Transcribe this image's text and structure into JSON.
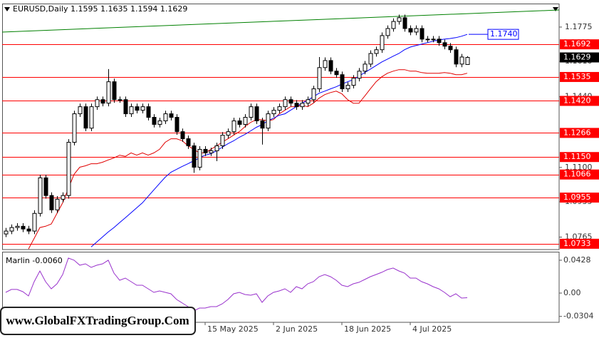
{
  "chart_data": {
    "type": "candlestick",
    "title": "EURUSD,Daily  1.1595 1.1635 1.1594 1.1629",
    "categories": [
      null,
      null,
      null,
      null,
      null,
      null,
      null,
      null,
      null,
      null,
      null,
      null,
      null,
      null,
      null,
      null,
      null,
      null,
      null,
      null,
      null,
      null,
      null,
      null,
      null,
      null,
      null,
      null,
      null,
      null,
      null,
      null,
      null,
      null,
      null,
      "15 May 2025",
      null,
      null,
      null,
      null,
      null,
      null,
      null,
      null,
      null,
      null,
      null,
      "2 Jun 2025",
      null,
      null,
      null,
      null,
      null,
      null,
      null,
      null,
      null,
      null,
      null,
      "18 Jun 2025",
      null,
      null,
      null,
      null,
      null,
      null,
      null,
      null,
      null,
      null,
      null,
      "4 Jul 2025",
      null,
      null,
      null,
      null,
      null,
      null,
      null,
      null,
      null,
      null
    ],
    "open": [
      1.078,
      1.0794,
      1.0811,
      1.0817,
      1.0804,
      1.0794,
      1.0879,
      1.105,
      1.0965,
      1.0896,
      1.0947,
      1.0965,
      1.1221,
      1.1358,
      1.1392,
      1.1289,
      1.1392,
      1.1426,
      1.1409,
      1.1512,
      1.1426,
      1.1426,
      1.1358,
      1.1392,
      1.1375,
      1.1392,
      1.1341,
      1.1307,
      1.1324,
      1.1358,
      1.1341,
      1.1272,
      1.1238,
      1.1204,
      1.1101,
      1.1187,
      1.117,
      1.118,
      1.1204,
      1.1255,
      1.1272,
      1.1324,
      1.1307,
      1.1341,
      1.1392,
      1.1324,
      1.1289,
      1.1358,
      1.1375,
      1.1392,
      1.1426,
      1.1409,
      1.1392,
      1.1409,
      1.1426,
      1.1478,
      1.158,
      1.1614,
      1.1563,
      1.1546,
      1.1478,
      1.1495,
      1.1529,
      1.1563,
      1.1597,
      1.1648,
      1.1666,
      1.1734,
      1.1768,
      1.1802,
      1.182,
      1.1768,
      1.1751,
      1.1768,
      1.1717,
      1.1717,
      1.1717,
      1.17,
      1.1683,
      1.1666,
      1.1597,
      1.1595
    ],
    "high": [
      1.0809,
      1.0826,
      1.0832,
      1.0832,
      1.0819,
      1.0894,
      1.1065,
      1.1065,
      1.098,
      1.0962,
      1.098,
      1.1236,
      1.1373,
      1.1407,
      1.1407,
      1.1407,
      1.1441,
      1.1441,
      1.1573,
      1.1527,
      1.1441,
      1.1441,
      1.1407,
      1.1407,
      1.1407,
      1.1407,
      1.1356,
      1.1339,
      1.1373,
      1.1373,
      1.1356,
      1.1287,
      1.1253,
      1.1219,
      1.1202,
      1.1202,
      1.1195,
      1.1219,
      1.127,
      1.1287,
      1.1339,
      1.1339,
      1.1356,
      1.1407,
      1.1407,
      1.1339,
      1.1373,
      1.139,
      1.1407,
      1.1441,
      1.1441,
      1.1424,
      1.1424,
      1.1441,
      1.1493,
      1.1631,
      1.1629,
      1.1629,
      1.1578,
      1.1561,
      1.151,
      1.1544,
      1.1578,
      1.1612,
      1.1663,
      1.1681,
      1.1749,
      1.1783,
      1.1817,
      1.1835,
      1.1835,
      1.1783,
      1.1783,
      1.1783,
      1.1732,
      1.1732,
      1.1732,
      1.1715,
      1.1698,
      1.1681,
      1.1646,
      1.1635
    ],
    "low": [
      1.0765,
      1.0779,
      1.0796,
      1.0789,
      1.0779,
      1.0779,
      1.0864,
      1.095,
      1.0881,
      1.0881,
      1.0932,
      1.095,
      1.1206,
      1.1343,
      1.1274,
      1.1274,
      1.1377,
      1.1394,
      1.1394,
      1.1411,
      1.1411,
      1.1343,
      1.1343,
      1.136,
      1.136,
      1.1326,
      1.1292,
      1.1292,
      1.1309,
      1.1326,
      1.1257,
      1.1223,
      1.1189,
      1.1074,
      1.1086,
      1.1155,
      1.1155,
      1.113,
      1.1189,
      1.124,
      1.1257,
      1.1292,
      1.1292,
      1.1326,
      1.1309,
      1.121,
      1.1274,
      1.1343,
      1.136,
      1.1377,
      1.1394,
      1.1377,
      1.1377,
      1.1394,
      1.1411,
      1.1463,
      1.1565,
      1.1548,
      1.1531,
      1.1463,
      1.1463,
      1.148,
      1.1514,
      1.1548,
      1.1582,
      1.1633,
      1.1651,
      1.1719,
      1.1753,
      1.1787,
      1.1753,
      1.1736,
      1.1736,
      1.1702,
      1.1702,
      1.1702,
      1.1685,
      1.1668,
      1.1651,
      1.1582,
      1.1582,
      1.1594
    ],
    "close": [
      1.0794,
      1.0811,
      1.0817,
      1.0804,
      1.0794,
      1.0879,
      1.105,
      1.0965,
      1.0896,
      1.0947,
      1.0965,
      1.1221,
      1.1358,
      1.1392,
      1.1289,
      1.1392,
      1.1426,
      1.1409,
      1.1512,
      1.1426,
      1.1426,
      1.1358,
      1.1392,
      1.1375,
      1.1392,
      1.1341,
      1.1307,
      1.1324,
      1.1358,
      1.1341,
      1.1272,
      1.1238,
      1.1204,
      1.1101,
      1.1187,
      1.117,
      1.118,
      1.1204,
      1.1255,
      1.1272,
      1.1324,
      1.1307,
      1.1341,
      1.1392,
      1.1324,
      1.1289,
      1.1358,
      1.1375,
      1.1392,
      1.1426,
      1.1409,
      1.1392,
      1.1409,
      1.1426,
      1.1478,
      1.158,
      1.1614,
      1.1563,
      1.1546,
      1.1478,
      1.1495,
      1.1529,
      1.1563,
      1.1597,
      1.1648,
      1.1666,
      1.1734,
      1.1768,
      1.1802,
      1.182,
      1.1768,
      1.1751,
      1.1768,
      1.1717,
      1.1717,
      1.1717,
      1.17,
      1.1683,
      1.1666,
      1.1597,
      1.1631,
      1.1629
    ],
    "up_color": "#ffffff",
    "down_color": "#000000",
    "ylim": [
      1.0705,
      1.1888
    ],
    "yticks": [
      1.1775,
      {
        "value": 1.161,
        "label": "1.1610"
      },
      {
        "value": 1.144,
        "label": "1.1440"
      },
      {
        "value": 1.11,
        "label": "1.1100"
      },
      1.0935,
      1.0765
    ],
    "series": [
      {
        "color": "#e00000",
        "values": [
          null,
          null,
          null,
          null,
          1.0708,
          1.0759,
          1.0811,
          1.0817,
          1.0828,
          1.0879,
          1.093,
          1.0999,
          1.1067,
          1.1101,
          1.1108,
          1.1118,
          1.1118,
          1.1125,
          1.1136,
          1.1146,
          1.1159,
          1.1153,
          1.117,
          1.1159,
          1.117,
          1.1159,
          1.117,
          1.1187,
          1.1221,
          1.1238,
          1.1238,
          1.1228,
          1.1204,
          1.1187,
          1.117,
          1.117,
          1.1187,
          1.1204,
          1.1221,
          1.1238,
          1.1255,
          1.1272,
          1.1296,
          1.1317,
          1.133,
          1.133,
          1.1324,
          1.133,
          1.1358,
          1.1375,
          1.1392,
          1.1392,
          1.1399,
          1.1392,
          1.1409,
          1.1433,
          1.145,
          1.146,
          1.1467,
          1.1454,
          1.1426,
          1.1409,
          1.1409,
          1.1443,
          1.1478,
          1.1512,
          1.1536,
          1.1553,
          1.1563,
          1.157,
          1.157,
          1.1563,
          1.1563,
          1.1556,
          1.1553,
          1.1553,
          1.1553,
          1.1556,
          1.1553,
          1.1546,
          1.1546,
          1.1553
        ]
      },
      {
        "color": "#0000ff",
        "values": [
          null,
          null,
          null,
          null,
          null,
          null,
          null,
          null,
          null,
          null,
          null,
          null,
          null,
          null,
          null,
          1.0718,
          1.0742,
          1.0766,
          1.079,
          1.0811,
          1.0835,
          1.0858,
          1.0882,
          1.0906,
          1.093,
          1.0961,
          1.0992,
          1.1023,
          1.1053,
          1.1077,
          1.1091,
          1.1105,
          1.1118,
          1.1132,
          1.1146,
          1.1159,
          1.1166,
          1.118,
          1.1197,
          1.1214,
          1.1228,
          1.1245,
          1.1259,
          1.1276,
          1.1293,
          1.1306,
          1.1324,
          1.1337,
          1.1351,
          1.1358,
          1.1375,
          1.1392,
          1.1409,
          1.1423,
          1.144,
          1.1457,
          1.1467,
          1.1478,
          1.1488,
          1.1501,
          1.1512,
          1.1522,
          1.1539,
          1.1556,
          1.1573,
          1.159,
          1.1607,
          1.1621,
          1.1635,
          1.1648,
          1.1666,
          1.1679,
          1.1686,
          1.1693,
          1.17,
          1.1707,
          1.1713,
          1.1717,
          1.172,
          1.1724,
          1.1731,
          1.174
        ]
      }
    ],
    "trendline": {
      "color": "#008000",
      "values": [
        1.1751,
        1.1857
      ]
    },
    "levels": {
      "color": "#ff0000",
      "values": [
        1.1692,
        1.1535,
        {
          "value": 1.142,
          "label": "1.1420"
        },
        1.1266,
        {
          "value": 1.115,
          "label": "1.1150"
        },
        1.1066,
        1.0955,
        1.0733
      ]
    },
    "last_price": 1.1629,
    "ma_label": {
      "value": 1.174,
      "label": "1.1740",
      "color": "#0000ff"
    },
    "indicator": {
      "type": "line",
      "title": "Marlin -0.0060",
      "color": "#9932cc",
      "ylim": [
        -0.0381,
        0.0539
      ],
      "yticks": [
        0.0428,
        {
          "value": 0,
          "label": "0.00"
        },
        -0.0304
      ],
      "values": [
        0.0009,
        0.0047,
        0.0047,
        0.0019,
        -0.0037,
        0.0149,
        0.0288,
        0.0149,
        0.0056,
        0.0121,
        0.0242,
        0.0456,
        0.0428,
        0.0363,
        0.0381,
        0.0335,
        0.0363,
        0.0381,
        0.0428,
        0.026,
        0.0167,
        0.0195,
        0.0149,
        0.0102,
        0.0102,
        0.0056,
        0.0009,
        0.0028,
        0.0009,
        -0.0009,
        -0.0084,
        -0.013,
        -0.0177,
        -0.0233,
        -0.0195,
        -0.0195,
        -0.0177,
        -0.0177,
        -0.014,
        -0.0084,
        -0.0009,
        0.0009,
        -0.0019,
        -0.0028,
        -0.0009,
        -0.0121,
        -0.0037,
        0.0009,
        0.0028,
        0.0056,
        0.0009,
        0.0084,
        0.0056,
        0.0121,
        0.0149,
        0.0214,
        0.0242,
        0.0214,
        0.0167,
        0.0102,
        0.0084,
        0.0121,
        0.014,
        0.0177,
        0.0214,
        0.0242,
        0.027,
        0.0307,
        0.0326,
        0.0288,
        0.026,
        0.0195,
        0.0195,
        0.0149,
        0.0121,
        0.0084,
        0.0056,
        0.0009,
        -0.0047,
        -0.0009,
        -0.0065,
        -0.006
      ]
    },
    "watermark": "www.GlobalFXTradingGroup.Com"
  }
}
